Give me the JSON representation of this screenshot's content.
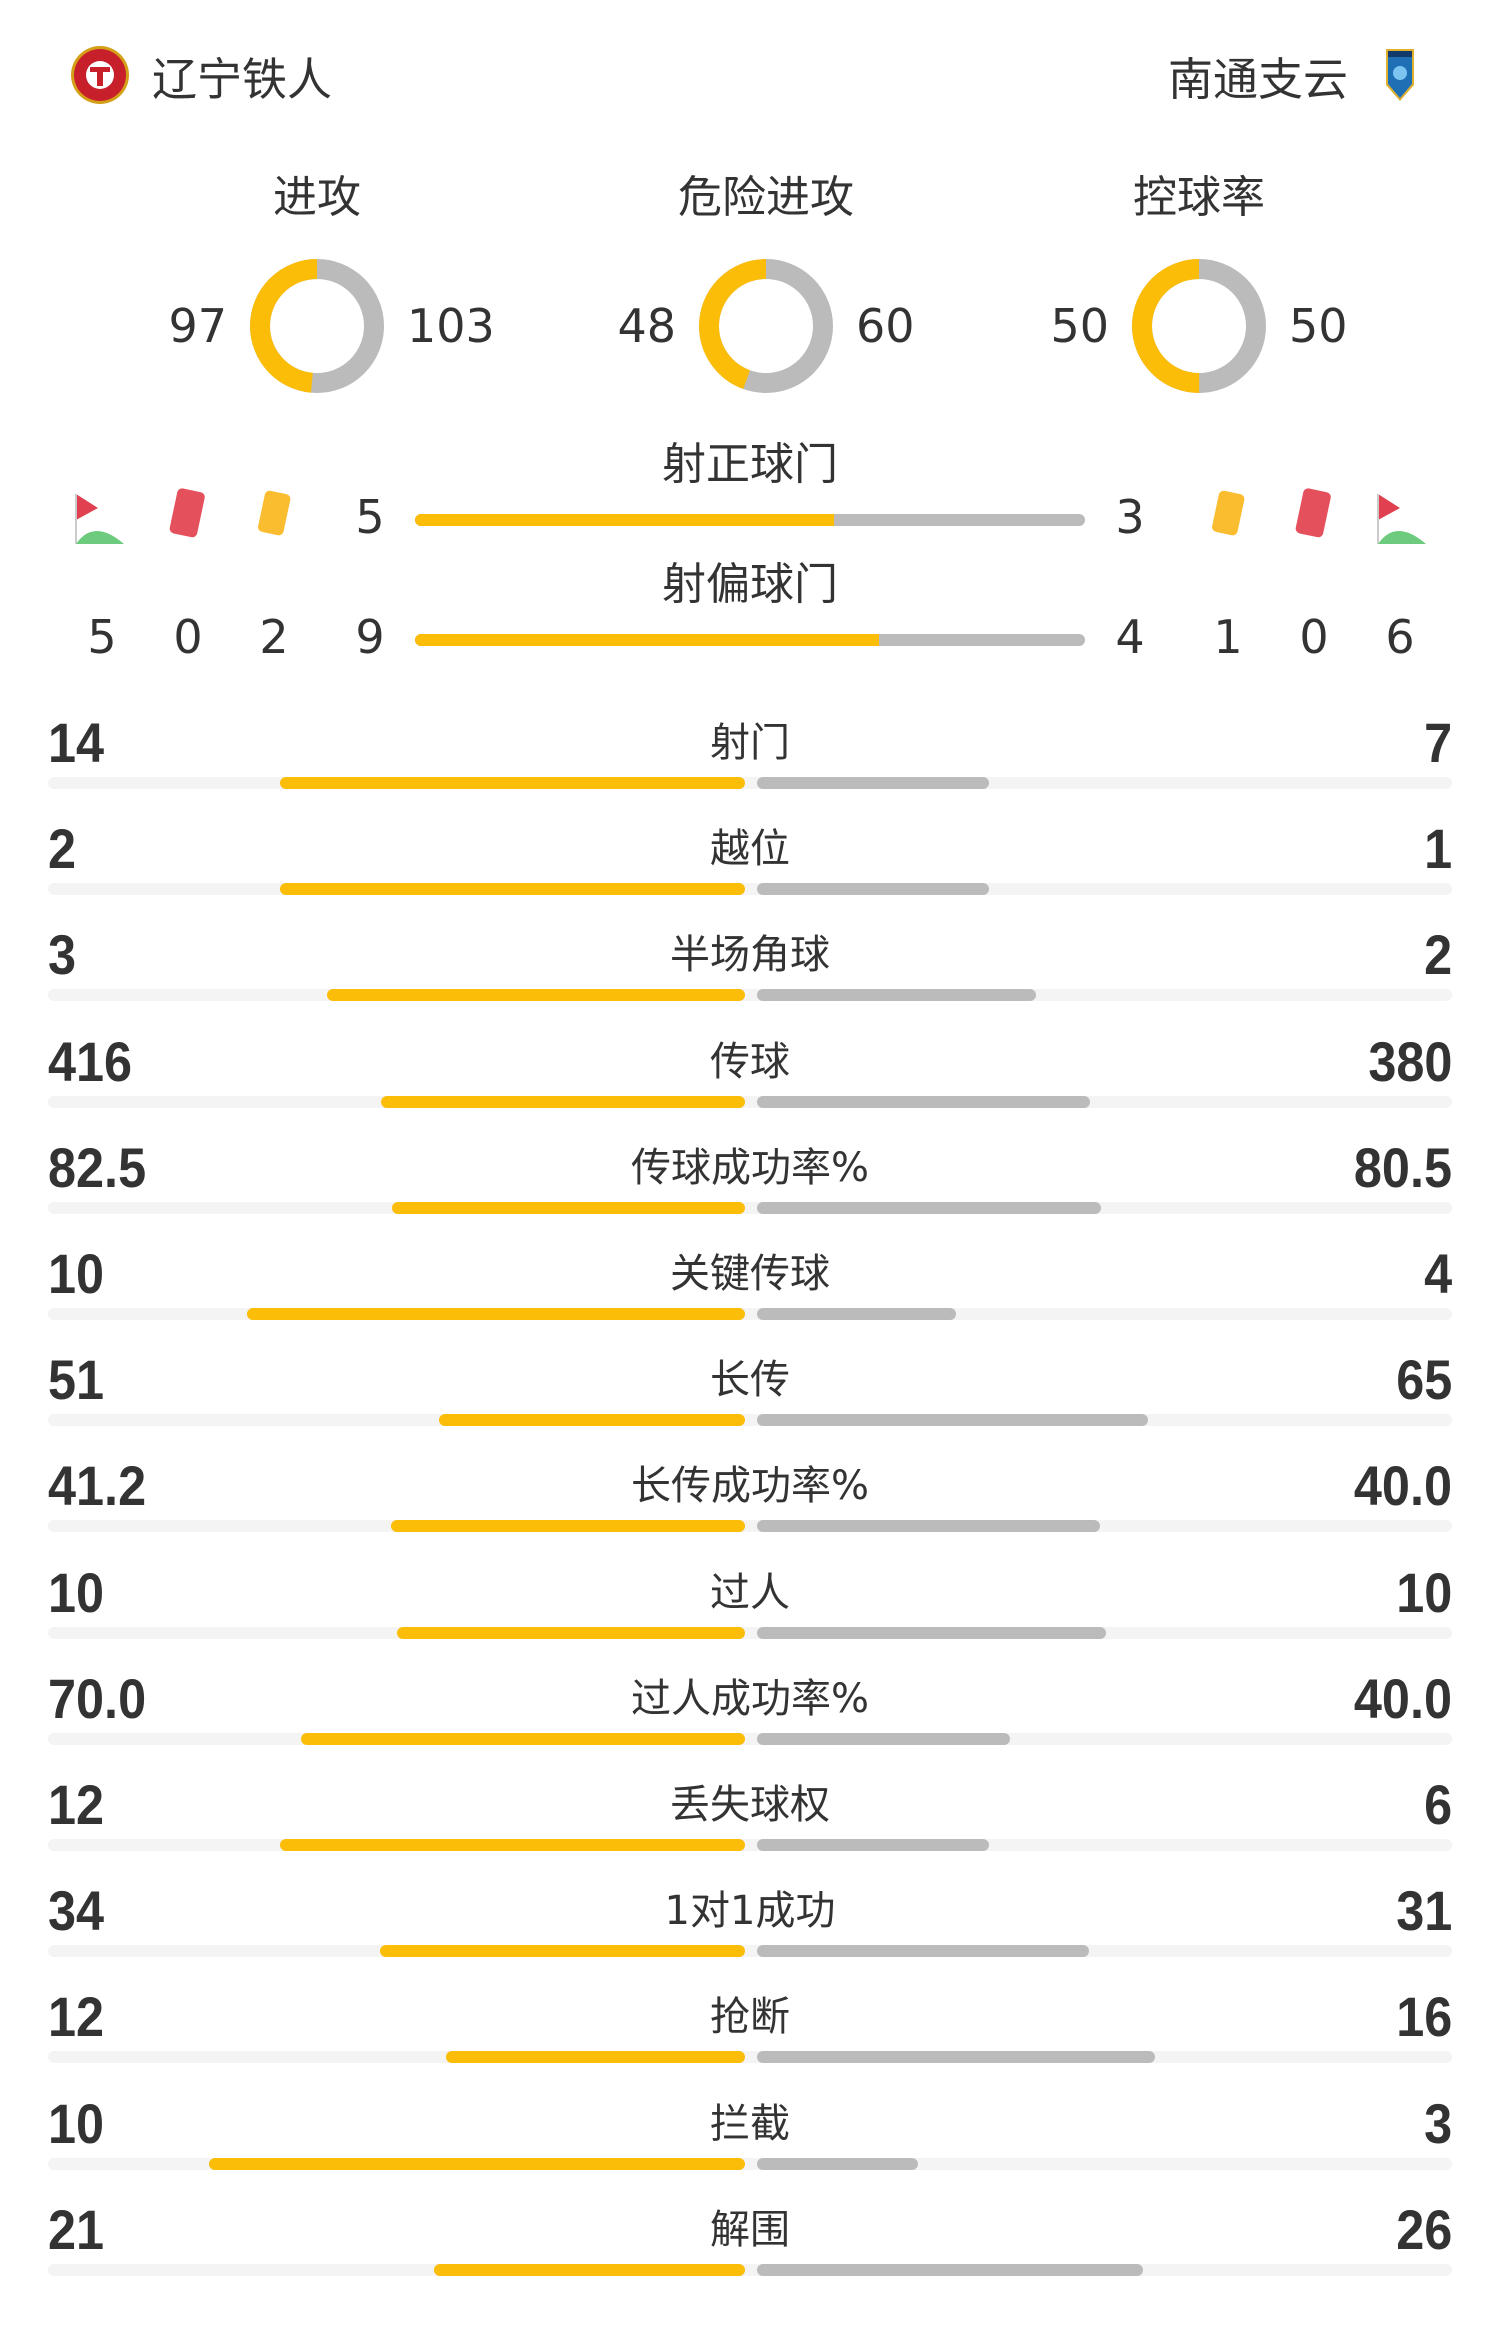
{
  "home": {
    "name": "辽宁铁人",
    "logo": "liaoning-tieren-logo"
  },
  "away": {
    "name": "南通支云",
    "logo": "nantong-zhiyun-logo"
  },
  "colors": {
    "home": "#fbbd08",
    "away": "#bbbbbb",
    "track": "#f4f4f4"
  },
  "metrics": [
    {
      "label": "进攻",
      "home": 97,
      "away": 103
    },
    {
      "label": "危险进攻",
      "home": 48,
      "away": 60
    },
    {
      "label": "控球率",
      "home": 50,
      "away": 50
    }
  ],
  "shots_on_target": {
    "label": "射正球门",
    "home": 5,
    "away": 3
  },
  "shots_off_target": {
    "label": "射偏球门",
    "home": 9,
    "away": 4
  },
  "discipline": {
    "home": {
      "corners": 5,
      "red_cards": 0,
      "yellow_cards": 2
    },
    "away": {
      "corners": 6,
      "red_cards": 0,
      "yellow_cards": 1
    }
  },
  "stats": [
    {
      "label": "射门",
      "home": "14",
      "away": "7"
    },
    {
      "label": "越位",
      "home": "2",
      "away": "1"
    },
    {
      "label": "半场角球",
      "home": "3",
      "away": "2"
    },
    {
      "label": "传球",
      "home": "416",
      "away": "380"
    },
    {
      "label": "传球成功率%",
      "home": "82.5",
      "away": "80.5"
    },
    {
      "label": "关键传球",
      "home": "10",
      "away": "4"
    },
    {
      "label": "长传",
      "home": "51",
      "away": "65"
    },
    {
      "label": "长传成功率%",
      "home": "41.2",
      "away": "40.0"
    },
    {
      "label": "过人",
      "home": "10",
      "away": "10"
    },
    {
      "label": "过人成功率%",
      "home": "70.0",
      "away": "40.0"
    },
    {
      "label": "丢失球权",
      "home": "12",
      "away": "6"
    },
    {
      "label": "1对1成功",
      "home": "34",
      "away": "31"
    },
    {
      "label": "抢断",
      "home": "12",
      "away": "16"
    },
    {
      "label": "拦截",
      "home": "10",
      "away": "3"
    },
    {
      "label": "解围",
      "home": "21",
      "away": "26"
    }
  ]
}
